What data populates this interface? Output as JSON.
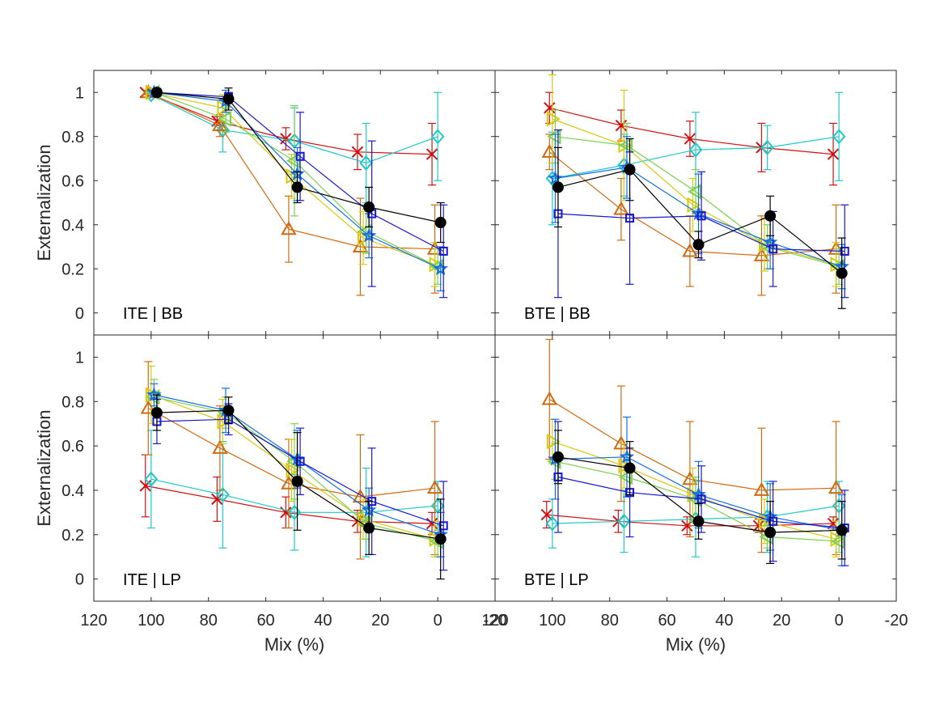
{
  "chart_data": {
    "type": "line",
    "layout": "2x2 grid, shared axes",
    "x_label": "Mix (%)",
    "y_label": "Externalization",
    "xlim": [
      120,
      -20
    ],
    "ylim": [
      -0.1,
      1.1
    ],
    "x_ticks": [
      120,
      100,
      80,
      60,
      40,
      20,
      0,
      -20
    ],
    "y_ticks": [
      0,
      0.2,
      0.4,
      0.6,
      0.8,
      1
    ],
    "grid": false,
    "legend": "none",
    "panels": [
      {
        "title": "ITE | BB",
        "series": [
          {
            "marker": "x",
            "color": "#d01010",
            "x": [
              102,
              77,
              53,
              28,
              2
            ],
            "y": [
              1.0,
              0.87,
              0.79,
              0.73,
              0.72
            ],
            "err": [
              0,
              0.02,
              0.05,
              0.08,
              0.14
            ]
          },
          {
            "marker": "diamond",
            "color": "#20c8c8",
            "x": [
              100,
              75,
              50,
              25,
              0
            ],
            "y": [
              0.99,
              0.83,
              0.78,
              0.68,
              0.8
            ],
            "err": [
              0.01,
              0.1,
              0.15,
              0.18,
              0.2
            ]
          },
          {
            "marker": "triangle-up",
            "color": "#d06a10",
            "x": [
              101,
              76,
              52,
              27,
              1
            ],
            "y": [
              1.0,
              0.85,
              0.38,
              0.3,
              0.29
            ],
            "err": [
              0.01,
              0.05,
              0.15,
              0.22,
              0.2
            ]
          },
          {
            "marker": "triangle-right",
            "color": "#d8c810",
            "x": [
              100,
              75,
              51,
              26,
              1
            ],
            "y": [
              1.0,
              0.93,
              0.62,
              0.34,
              0.22
            ],
            "err": [
              0.01,
              0.06,
              0.1,
              0.12,
              0.1
            ]
          },
          {
            "marker": "triangle-left",
            "color": "#7cd050",
            "x": [
              99,
              74,
              50,
              25,
              0
            ],
            "y": [
              1.0,
              0.88,
              0.69,
              0.37,
              0.21
            ],
            "err": [
              0.01,
              0.06,
              0.25,
              0.1,
              0.08
            ]
          },
          {
            "marker": "star",
            "color": "#1470e0",
            "x": [
              99,
              74,
              49,
              24,
              -1
            ],
            "y": [
              1.0,
              0.96,
              0.63,
              0.35,
              0.2
            ],
            "err": [
              0.01,
              0.05,
              0.12,
              0.1,
              0.1
            ]
          },
          {
            "marker": "square",
            "color": "#1818d0",
            "x": [
              98,
              73,
              48,
              23,
              -2
            ],
            "y": [
              1.0,
              0.98,
              0.71,
              0.45,
              0.28
            ],
            "err": [
              0.01,
              0.02,
              0.2,
              0.33,
              0.21
            ]
          },
          {
            "marker": "circle",
            "color": "#000000",
            "x": [
              98,
              73,
              49,
              24,
              -1
            ],
            "y": [
              1.0,
              0.97,
              0.57,
              0.48,
              0.41
            ],
            "err": [
              0.01,
              0.05,
              0.07,
              0.09,
              0.09
            ]
          }
        ]
      },
      {
        "title": "BTE | BB",
        "series": [
          {
            "marker": "x",
            "color": "#d01010",
            "x": [
              101,
              76,
              52,
              27,
              2
            ],
            "y": [
              0.93,
              0.85,
              0.79,
              0.75,
              0.72
            ],
            "err": [
              0.07,
              0.07,
              0.08,
              0.11,
              0.14
            ]
          },
          {
            "marker": "diamond",
            "color": "#20c8c8",
            "x": [
              100,
              75,
              50,
              25,
              0
            ],
            "y": [
              0.61,
              0.67,
              0.74,
              0.75,
              0.8
            ],
            "err": [
              0.21,
              0.14,
              0.17,
              0.1,
              0.2
            ]
          },
          {
            "marker": "triangle-up",
            "color": "#d06a10",
            "x": [
              101,
              76,
              52,
              27,
              1
            ],
            "y": [
              0.73,
              0.47,
              0.28,
              0.26,
              0.29
            ],
            "err": [
              0.08,
              0.14,
              0.16,
              0.18,
              0.2
            ]
          },
          {
            "marker": "triangle-right",
            "color": "#d8c810",
            "x": [
              100,
              75,
              51,
              26,
              1
            ],
            "y": [
              0.88,
              0.76,
              0.49,
              0.31,
              0.22
            ],
            "err": [
              0.2,
              0.25,
              0.12,
              0.12,
              0.1
            ]
          },
          {
            "marker": "triangle-left",
            "color": "#7cd050",
            "x": [
              99,
              74,
              50,
              25,
              0
            ],
            "y": [
              0.8,
              0.76,
              0.55,
              0.3,
              0.21
            ],
            "err": [
              0.12,
              0.1,
              0.1,
              0.1,
              0.08
            ]
          },
          {
            "marker": "star",
            "color": "#1470e0",
            "x": [
              99,
              74,
              49,
              24,
              -1
            ],
            "y": [
              0.61,
              0.66,
              0.45,
              0.32,
              0.21
            ],
            "err": [
              0.2,
              0.14,
              0.18,
              0.12,
              0.1
            ]
          },
          {
            "marker": "square",
            "color": "#1818d0",
            "x": [
              98,
              73,
              48,
              23,
              -2
            ],
            "y": [
              0.45,
              0.43,
              0.44,
              0.29,
              0.28
            ],
            "err": [
              0.38,
              0.3,
              0.2,
              0.17,
              0.21
            ]
          },
          {
            "marker": "circle",
            "color": "#000000",
            "x": [
              98,
              73,
              49,
              24,
              -1
            ],
            "y": [
              0.57,
              0.65,
              0.31,
              0.44,
              0.18
            ],
            "err": [
              0.18,
              0.14,
              0.06,
              0.09,
              0.16
            ]
          }
        ]
      },
      {
        "title": "ITE | LP",
        "series": [
          {
            "marker": "x",
            "color": "#d01010",
            "x": [
              102,
              77,
              53,
              28,
              2
            ],
            "y": [
              0.42,
              0.36,
              0.3,
              0.26,
              0.25
            ],
            "err": [
              0.14,
              0.1,
              0.07,
              0.05,
              0.05
            ]
          },
          {
            "marker": "diamond",
            "color": "#20c8c8",
            "x": [
              100,
              75,
              50,
              25,
              0
            ],
            "y": [
              0.45,
              0.38,
              0.3,
              0.3,
              0.33
            ],
            "err": [
              0.22,
              0.24,
              0.17,
              0.2,
              0.11
            ]
          },
          {
            "marker": "triangle-up",
            "color": "#d06a10",
            "x": [
              101,
              76,
              52,
              27,
              1
            ],
            "y": [
              0.77,
              0.59,
              0.43,
              0.37,
              0.41
            ],
            "err": [
              0.21,
              0.19,
              0.2,
              0.28,
              0.3
            ]
          },
          {
            "marker": "triangle-right",
            "color": "#d8c810",
            "x": [
              100,
              75,
              51,
              26,
              1
            ],
            "y": [
              0.83,
              0.71,
              0.49,
              0.27,
              0.18
            ],
            "err": [
              0.13,
              0.1,
              0.14,
              0.09,
              0.08
            ]
          },
          {
            "marker": "triangle-left",
            "color": "#7cd050",
            "x": [
              99,
              74,
              50,
              25,
              0
            ],
            "y": [
              0.82,
              0.75,
              0.53,
              0.25,
              0.17
            ],
            "err": [
              0.08,
              0.07,
              0.17,
              0.07,
              0.07
            ]
          },
          {
            "marker": "star",
            "color": "#1470e0",
            "x": [
              99,
              74,
              49,
              24,
              -1
            ],
            "y": [
              0.83,
              0.76,
              0.54,
              0.31,
              0.2
            ],
            "err": [
              0.05,
              0.1,
              0.13,
              0.1,
              0.1
            ]
          },
          {
            "marker": "square",
            "color": "#1818d0",
            "x": [
              98,
              73,
              48,
              23,
              -2
            ],
            "y": [
              0.71,
              0.72,
              0.53,
              0.35,
              0.24
            ],
            "err": [
              0.1,
              0.07,
              0.15,
              0.24,
              0.2
            ]
          },
          {
            "marker": "circle",
            "color": "#000000",
            "x": [
              98,
              73,
              49,
              24,
              -1
            ],
            "y": [
              0.75,
              0.76,
              0.44,
              0.23,
              0.18
            ],
            "err": [
              0.08,
              0.06,
              0.22,
              0.12,
              0.18
            ]
          }
        ]
      },
      {
        "title": "BTE | LP",
        "series": [
          {
            "marker": "x",
            "color": "#d01010",
            "x": [
              102,
              77,
              53,
              28,
              2
            ],
            "y": [
              0.29,
              0.26,
              0.24,
              0.24,
              0.25
            ],
            "err": [
              0.06,
              0.05,
              0.04,
              0.03,
              0.03
            ]
          },
          {
            "marker": "diamond",
            "color": "#20c8c8",
            "x": [
              100,
              75,
              50,
              25,
              0
            ],
            "y": [
              0.25,
              0.26,
              0.27,
              0.28,
              0.33
            ],
            "err": [
              0.11,
              0.14,
              0.17,
              0.16,
              0.11
            ]
          },
          {
            "marker": "triangle-up",
            "color": "#d06a10",
            "x": [
              101,
              76,
              52,
              27,
              1
            ],
            "y": [
              0.81,
              0.61,
              0.45,
              0.4,
              0.41
            ],
            "err": [
              0.27,
              0.26,
              0.26,
              0.28,
              0.3
            ]
          },
          {
            "marker": "triangle-right",
            "color": "#d8c810",
            "x": [
              100,
              75,
              51,
              26,
              1
            ],
            "y": [
              0.62,
              0.51,
              0.38,
              0.26,
              0.18
            ],
            "err": [
              0.1,
              0.1,
              0.12,
              0.1,
              0.08
            ]
          },
          {
            "marker": "triangle-left",
            "color": "#7cd050",
            "x": [
              99,
              74,
              50,
              25,
              0
            ],
            "y": [
              0.53,
              0.46,
              0.36,
              0.19,
              0.17
            ],
            "err": [
              0.08,
              0.08,
              0.1,
              0.05,
              0.05
            ]
          },
          {
            "marker": "star",
            "color": "#1470e0",
            "x": [
              99,
              74,
              49,
              24,
              -1
            ],
            "y": [
              0.54,
              0.55,
              0.38,
              0.28,
              0.22
            ],
            "err": [
              0.18,
              0.18,
              0.15,
              0.15,
              0.16
            ]
          },
          {
            "marker": "square",
            "color": "#1818d0",
            "x": [
              98,
              73,
              48,
              23,
              -2
            ],
            "y": [
              0.46,
              0.39,
              0.36,
              0.26,
              0.23
            ],
            "err": [
              0.25,
              0.2,
              0.15,
              0.18,
              0.17
            ]
          },
          {
            "marker": "circle",
            "color": "#000000",
            "x": [
              98,
              73,
              49,
              24,
              -1
            ],
            "y": [
              0.55,
              0.5,
              0.26,
              0.21,
              0.22
            ],
            "err": [
              0.12,
              0.12,
              0.08,
              0.14,
              0.13
            ]
          }
        ]
      }
    ]
  }
}
